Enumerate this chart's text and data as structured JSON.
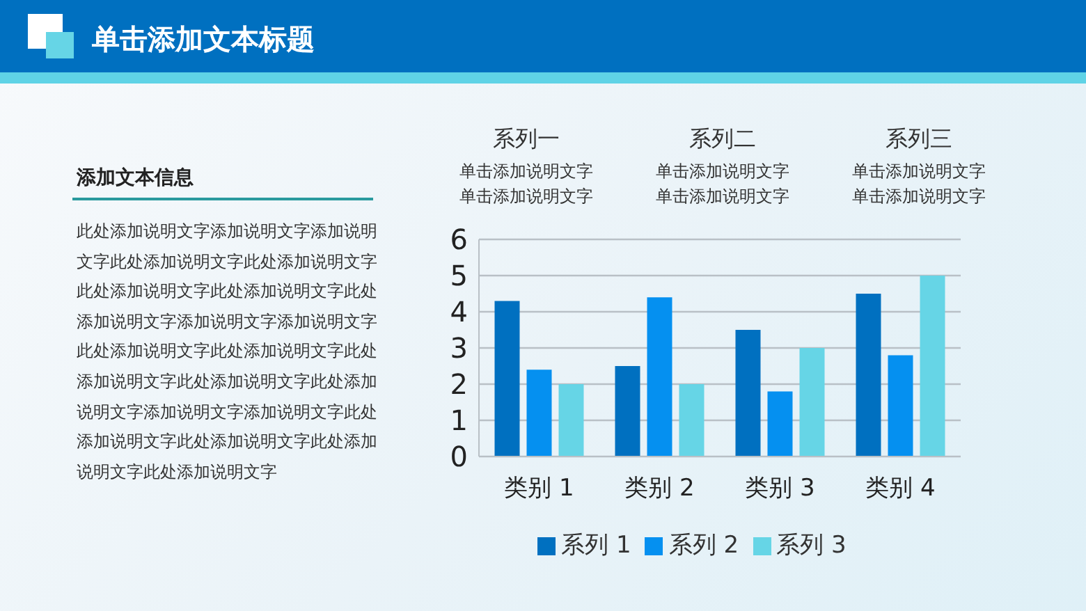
{
  "chart_data": {
    "type": "bar",
    "title": "单击添加文本标题",
    "categories": [
      "类别 1",
      "类别 2",
      "类别 3",
      "类别 4"
    ],
    "series": [
      {
        "name": "系列 1",
        "color": "#0070c0",
        "values": [
          4.3,
          2.5,
          3.5,
          4.5
        ]
      },
      {
        "name": "系列 2",
        "color": "#0590f0",
        "values": [
          2.4,
          4.4,
          1.8,
          2.8
        ]
      },
      {
        "name": "系列 3",
        "color": "#66d5e6",
        "values": [
          2,
          2,
          3,
          5
        ]
      }
    ],
    "ylim": [
      0,
      6
    ],
    "yticks": [
      0,
      1,
      2,
      3,
      4,
      5,
      6
    ],
    "grid": "y",
    "legend": "bottom",
    "annotations": [
      "添加文本信息",
      "此处添加说明文字添加说明文字添加说明文字此处添加说明文字此处添加说明文字此处添加说明文字此处添加说明文字此处添加说明文字添加说明文字添加说明文字此处添加说明文字此处添加说明文字此处添加说明文字此处添加说明文字此处添加说明文字添加说明文字添加说明文字此处添加说明文字此处添加说明文字此处添加说明文字此处添加说明文字",
      "系列一",
      "系列二",
      "系列三",
      "单击添加说明文字",
      "单击添加说明文字",
      "单击添加说明文字",
      "单击添加说明文字",
      "单击添加说明文字",
      "单击添加说明文字"
    ]
  }
}
